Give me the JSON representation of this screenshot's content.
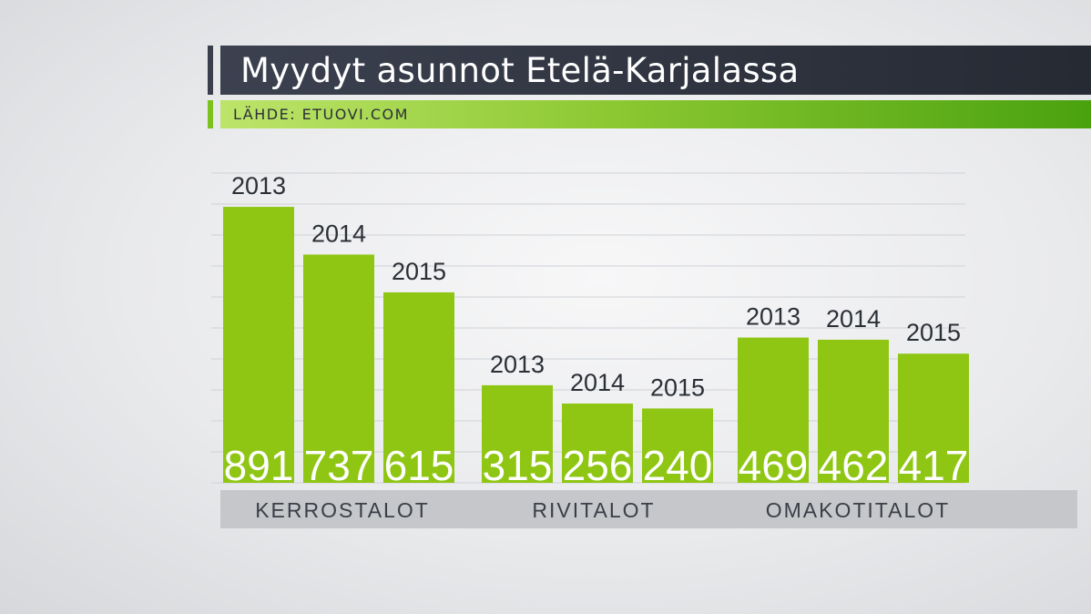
{
  "header": {
    "title": "Myydyt asunnot Etelä-Karjalassa",
    "source": "LÄHDE: ETUOVI.COM"
  },
  "colors": {
    "bar": "#8fc614",
    "title_bg": "#2f333d",
    "source_bar": "#7cc11c",
    "category_bar": "#c5c7cb",
    "text_dark": "#2b2f36"
  },
  "chart_data": {
    "type": "bar",
    "title": "Myydyt asunnot Etelä-Karjalassa",
    "source": "LÄHDE: ETUOVI.COM",
    "categories": [
      "KERROSTALOT",
      "RIVITALOT",
      "OMAKOTITALOT"
    ],
    "series": [
      {
        "name": "2013",
        "values": [
          891,
          315,
          469
        ]
      },
      {
        "name": "2014",
        "values": [
          737,
          256,
          462
        ]
      },
      {
        "name": "2015",
        "values": [
          615,
          240,
          417
        ]
      }
    ],
    "ylim": [
      0,
      1000
    ],
    "grid": true,
    "legend": "year labels above each bar"
  }
}
